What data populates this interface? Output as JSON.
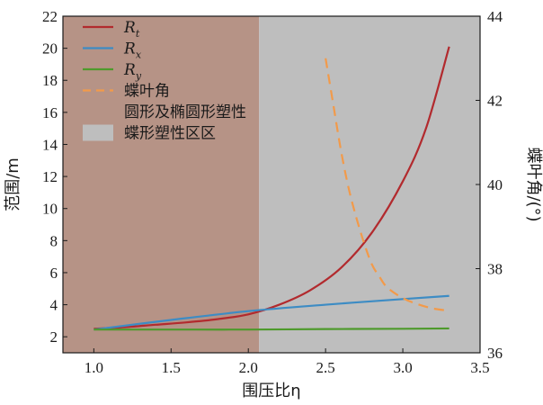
{
  "chart_data": {
    "type": "line",
    "x_axis": {
      "label": "围压比η",
      "min": 0.8,
      "max": 3.5,
      "ticks": [
        1.0,
        1.5,
        2.0,
        2.5,
        3.0,
        3.5
      ],
      "tick_labels": [
        "1.0",
        "1.5",
        "2.0",
        "2.5",
        "3.0",
        "3.5"
      ]
    },
    "y_axis_left": {
      "label": "范围/m",
      "min": 1,
      "max": 22,
      "ticks": [
        2,
        4,
        6,
        8,
        10,
        12,
        14,
        16,
        18,
        20,
        22
      ],
      "tick_labels": [
        "2",
        "4",
        "6",
        "8",
        "10",
        "12",
        "14",
        "16",
        "18",
        "20",
        "22"
      ]
    },
    "y_axis_right": {
      "label": "蝶叶角/(°)",
      "min": 36,
      "max": 44,
      "ticks": [
        36,
        38,
        40,
        42,
        44
      ],
      "tick_labels": [
        "36",
        "38",
        "40",
        "42",
        "44"
      ]
    },
    "regions": [
      {
        "name": "圆形及椭圆形塑性",
        "x_from": 0.8,
        "x_to": 2.07,
        "color": "#b69386"
      },
      {
        "name": "蝶形塑性区区",
        "x_from": 2.07,
        "x_to": 3.5,
        "color": "#bebebe"
      }
    ],
    "series": [
      {
        "name": "Rt",
        "symbol": "R",
        "subscript": "t",
        "axis": "left",
        "color": "#b22a2e",
        "dash": false,
        "x": [
          1.0,
          1.2,
          1.4,
          1.6,
          1.8,
          2.0,
          2.2,
          2.4,
          2.6,
          2.8,
          3.0,
          3.15,
          3.3
        ],
        "y": [
          2.5,
          2.6,
          2.75,
          2.9,
          3.1,
          3.4,
          4.0,
          4.9,
          6.3,
          8.5,
          11.7,
          15.0,
          20.1
        ]
      },
      {
        "name": "Rx",
        "symbol": "R",
        "subscript": "x",
        "axis": "left",
        "color": "#3d8cc4",
        "dash": false,
        "x": [
          1.0,
          1.5,
          2.0,
          2.5,
          3.0,
          3.3
        ],
        "y": [
          2.45,
          3.05,
          3.6,
          4.0,
          4.35,
          4.55
        ]
      },
      {
        "name": "Ry",
        "symbol": "R",
        "subscript": "y",
        "axis": "left",
        "color": "#4e9a2c",
        "dash": false,
        "x": [
          1.0,
          1.5,
          2.0,
          2.5,
          3.0,
          3.3
        ],
        "y": [
          2.45,
          2.45,
          2.45,
          2.48,
          2.5,
          2.52
        ]
      },
      {
        "name": "蝶叶角",
        "axis": "right",
        "color": "#f29a4a",
        "dash": true,
        "x": [
          2.5,
          2.55,
          2.6,
          2.65,
          2.7,
          2.75,
          2.8,
          2.85,
          2.9,
          3.0,
          3.1,
          3.2,
          3.3
        ],
        "y": [
          43.0,
          41.9,
          40.8,
          39.9,
          39.2,
          38.6,
          38.1,
          37.8,
          37.55,
          37.3,
          37.15,
          37.05,
          37.0
        ]
      }
    ],
    "legend_position": "top-left"
  }
}
